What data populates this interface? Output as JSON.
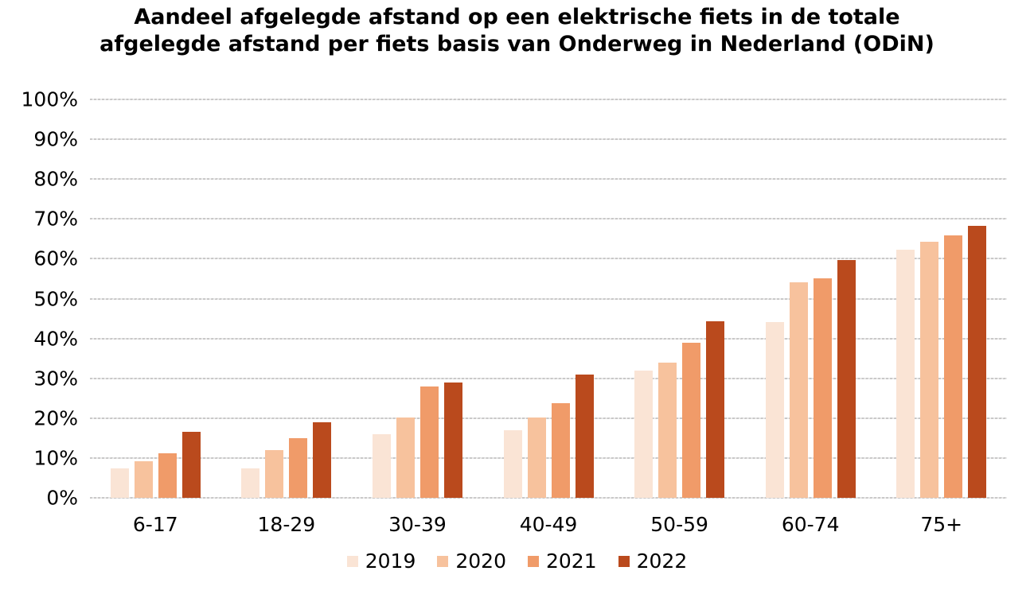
{
  "chart_data": {
    "type": "bar",
    "title": "Aandeel afgelegde afstand op een elektrische fiets in de totale afgelegde afstand per fiets basis van Onderweg in Nederland (ODiN)",
    "categories": [
      "6-17",
      "18-29",
      "30-39",
      "40-49",
      "50-59",
      "60-74",
      "75+"
    ],
    "series": [
      {
        "name": "2019",
        "color": "#FAE4D5",
        "values": [
          7.3,
          7.4,
          15.9,
          17.0,
          31.9,
          44.2,
          62.2
        ]
      },
      {
        "name": "2020",
        "color": "#F7C29D",
        "values": [
          9.2,
          11.9,
          20.2,
          20.2,
          33.9,
          54.0,
          64.2
        ]
      },
      {
        "name": "2021",
        "color": "#F09B69",
        "values": [
          11.2,
          14.9,
          28.0,
          23.8,
          39.0,
          55.1,
          65.9
        ]
      },
      {
        "name": "2022",
        "color": "#BA4A1D",
        "values": [
          16.5,
          18.9,
          29.0,
          31.0,
          44.3,
          59.7,
          68.2
        ]
      }
    ],
    "xlabel": "",
    "ylabel": "",
    "ylim": [
      0,
      100
    ],
    "y_ticks": [
      "0%",
      "10%",
      "20%",
      "30%",
      "40%",
      "50%",
      "60%",
      "70%",
      "80%",
      "90%",
      "100%"
    ],
    "grid": true,
    "gridline_color": "#c9c8c8",
    "legend_position": "bottom",
    "background_color": "#ffffff",
    "text_color": "#000000"
  }
}
